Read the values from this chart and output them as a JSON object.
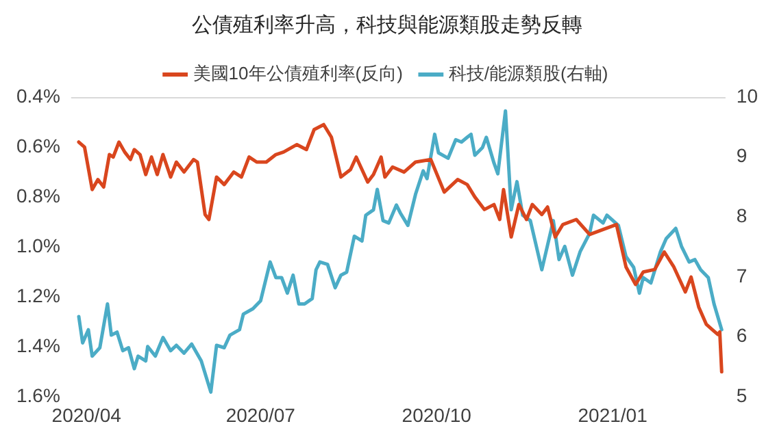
{
  "chart_data": {
    "type": "line",
    "title": "公債殖利率升高，科技與能源類股走勢反轉",
    "legend": "top",
    "marker": "none",
    "line_style": "solid",
    "grid": false,
    "xlim": [
      "2020-03-24",
      "2021-03-01"
    ],
    "xticks": [
      {
        "value": "2020-04-01",
        "label": "2020/04"
      },
      {
        "value": "2020-07-01",
        "label": "2020/07"
      },
      {
        "value": "2020-10-01",
        "label": "2020/10"
      },
      {
        "value": "2021-01-01",
        "label": "2021/01"
      }
    ],
    "ylim": [
      1.6,
      0.4
    ],
    "yticks": [
      {
        "value": 0.4,
        "label": "0.4%"
      },
      {
        "value": 0.6,
        "label": "0.6%"
      },
      {
        "value": 0.8,
        "label": "0.8%"
      },
      {
        "value": 1.0,
        "label": "1.0%"
      },
      {
        "value": 1.2,
        "label": "1.2%"
      },
      {
        "value": 1.4,
        "label": "1.4%"
      },
      {
        "value": 1.6,
        "label": "1.6%"
      }
    ],
    "y2lim": [
      5,
      10
    ],
    "y2ticks": [
      5,
      6,
      7,
      8,
      9,
      10
    ],
    "series": [
      {
        "name": "美國10年公債殖利率(反向)",
        "color": "#d9461e",
        "axis": "y",
        "x": [
          "2020-03-28",
          "2020-03-31",
          "2020-04-04",
          "2020-04-07",
          "2020-04-10",
          "2020-04-13",
          "2020-04-15",
          "2020-04-18",
          "2020-04-21",
          "2020-04-24",
          "2020-04-26",
          "2020-04-29",
          "2020-05-02",
          "2020-05-05",
          "2020-05-08",
          "2020-05-11",
          "2020-05-15",
          "2020-05-18",
          "2020-05-22",
          "2020-05-27",
          "2020-05-29",
          "2020-06-02",
          "2020-06-04",
          "2020-06-08",
          "2020-06-12",
          "2020-06-17",
          "2020-06-21",
          "2020-06-25",
          "2020-06-29",
          "2020-07-04",
          "2020-07-09",
          "2020-07-13",
          "2020-07-20",
          "2020-07-25",
          "2020-07-29",
          "2020-08-03",
          "2020-08-07",
          "2020-08-12",
          "2020-08-17",
          "2020-08-20",
          "2020-08-26",
          "2020-08-29",
          "2020-09-02",
          "2020-09-04",
          "2020-09-08",
          "2020-09-14",
          "2020-09-20",
          "2020-09-28",
          "2020-10-05",
          "2020-10-12",
          "2020-10-17",
          "2020-10-21",
          "2020-10-26",
          "2020-10-31",
          "2020-11-03",
          "2020-11-05",
          "2020-11-09",
          "2020-11-13",
          "2020-11-17",
          "2020-11-20",
          "2020-11-25",
          "2020-11-28",
          "2020-12-02",
          "2020-12-06",
          "2020-12-13",
          "2020-12-20",
          "2020-12-27",
          "2021-01-03",
          "2021-01-08",
          "2021-01-13",
          "2021-01-17",
          "2021-01-23",
          "2021-01-28",
          "2021-02-02",
          "2021-02-08",
          "2021-02-11",
          "2021-02-15",
          "2021-02-19",
          "2021-02-22",
          "2021-02-25",
          "2021-02-26",
          "2021-02-27"
        ],
        "values": [
          0.58,
          0.6,
          0.77,
          0.73,
          0.76,
          0.63,
          0.64,
          0.58,
          0.62,
          0.65,
          0.61,
          0.63,
          0.71,
          0.64,
          0.71,
          0.63,
          0.72,
          0.66,
          0.7,
          0.65,
          0.66,
          0.87,
          0.89,
          0.72,
          0.75,
          0.7,
          0.72,
          0.64,
          0.66,
          0.66,
          0.63,
          0.62,
          0.59,
          0.61,
          0.53,
          0.51,
          0.56,
          0.72,
          0.69,
          0.64,
          0.74,
          0.71,
          0.64,
          0.72,
          0.68,
          0.7,
          0.66,
          0.65,
          0.78,
          0.73,
          0.75,
          0.8,
          0.85,
          0.83,
          0.89,
          0.77,
          0.96,
          0.83,
          0.89,
          0.83,
          0.87,
          0.84,
          0.96,
          0.91,
          0.89,
          0.95,
          0.93,
          0.91,
          1.08,
          1.15,
          1.1,
          1.09,
          1.02,
          1.08,
          1.18,
          1.12,
          1.24,
          1.31,
          1.33,
          1.35,
          1.34,
          1.5
        ]
      },
      {
        "name": "科技/能源類股(右軸)",
        "color": "#4bacc6",
        "axis": "y2",
        "x": [
          "2020-03-28",
          "2020-03-30",
          "2020-04-02",
          "2020-04-04",
          "2020-04-08",
          "2020-04-12",
          "2020-04-14",
          "2020-04-17",
          "2020-04-20",
          "2020-04-23",
          "2020-04-26",
          "2020-04-28",
          "2020-05-02",
          "2020-05-03",
          "2020-05-07",
          "2020-05-11",
          "2020-05-15",
          "2020-05-18",
          "2020-05-22",
          "2020-05-26",
          "2020-05-31",
          "2020-06-05",
          "2020-06-08",
          "2020-06-12",
          "2020-06-15",
          "2020-06-20",
          "2020-06-22",
          "2020-06-27",
          "2020-07-01",
          "2020-07-06",
          "2020-07-09",
          "2020-07-12",
          "2020-07-15",
          "2020-07-18",
          "2020-07-21",
          "2020-07-24",
          "2020-07-28",
          "2020-07-30",
          "2020-08-01",
          "2020-08-05",
          "2020-08-09",
          "2020-08-12",
          "2020-08-15",
          "2020-08-19",
          "2020-08-23",
          "2020-08-25",
          "2020-08-29",
          "2020-08-31",
          "2020-09-03",
          "2020-09-06",
          "2020-09-10",
          "2020-09-12",
          "2020-09-16",
          "2020-09-20",
          "2020-09-24",
          "2020-09-26",
          "2020-09-30",
          "2020-10-02",
          "2020-10-07",
          "2020-10-11",
          "2020-10-14",
          "2020-10-17",
          "2020-10-19",
          "2020-10-21",
          "2020-10-25",
          "2020-10-27",
          "2020-10-31",
          "2020-11-02",
          "2020-11-06",
          "2020-11-09",
          "2020-11-12",
          "2020-11-15",
          "2020-11-19",
          "2020-11-25",
          "2020-12-01",
          "2020-12-04",
          "2020-12-07",
          "2020-12-11",
          "2020-12-15",
          "2020-12-20",
          "2020-12-22",
          "2020-12-27",
          "2020-12-29",
          "2021-01-04",
          "2021-01-08",
          "2021-01-12",
          "2021-01-15",
          "2021-01-17",
          "2021-01-21",
          "2021-01-26",
          "2021-01-29",
          "2021-02-03",
          "2021-02-06",
          "2021-02-10",
          "2021-02-13",
          "2021-02-16",
          "2021-02-20",
          "2021-02-23",
          "2021-02-27"
        ],
        "values": [
          6.34,
          5.9,
          6.12,
          5.68,
          5.82,
          6.55,
          6.03,
          6.08,
          5.77,
          5.82,
          5.47,
          5.68,
          5.6,
          5.84,
          5.68,
          5.99,
          5.77,
          5.86,
          5.73,
          5.88,
          5.6,
          5.08,
          5.86,
          5.82,
          6.03,
          6.12,
          6.38,
          6.47,
          6.6,
          7.25,
          6.99,
          6.99,
          6.73,
          7.03,
          6.55,
          6.55,
          6.64,
          7.12,
          7.25,
          7.21,
          6.82,
          7.03,
          7.08,
          7.68,
          7.6,
          8.03,
          8.12,
          8.46,
          7.94,
          7.9,
          8.2,
          8.07,
          7.86,
          8.38,
          8.77,
          8.64,
          9.38,
          9.07,
          8.98,
          9.29,
          9.25,
          9.33,
          9.38,
          9.03,
          9.16,
          9.33,
          8.9,
          8.72,
          9.77,
          8.12,
          8.59,
          8.03,
          7.94,
          7.12,
          7.94,
          7.29,
          7.51,
          7.03,
          7.42,
          7.73,
          8.03,
          7.9,
          8.03,
          7.86,
          7.34,
          7.16,
          6.73,
          6.99,
          6.9,
          7.42,
          7.64,
          7.81,
          7.51,
          7.25,
          7.29,
          7.12,
          6.99,
          6.55,
          6.12
        ]
      }
    ]
  }
}
